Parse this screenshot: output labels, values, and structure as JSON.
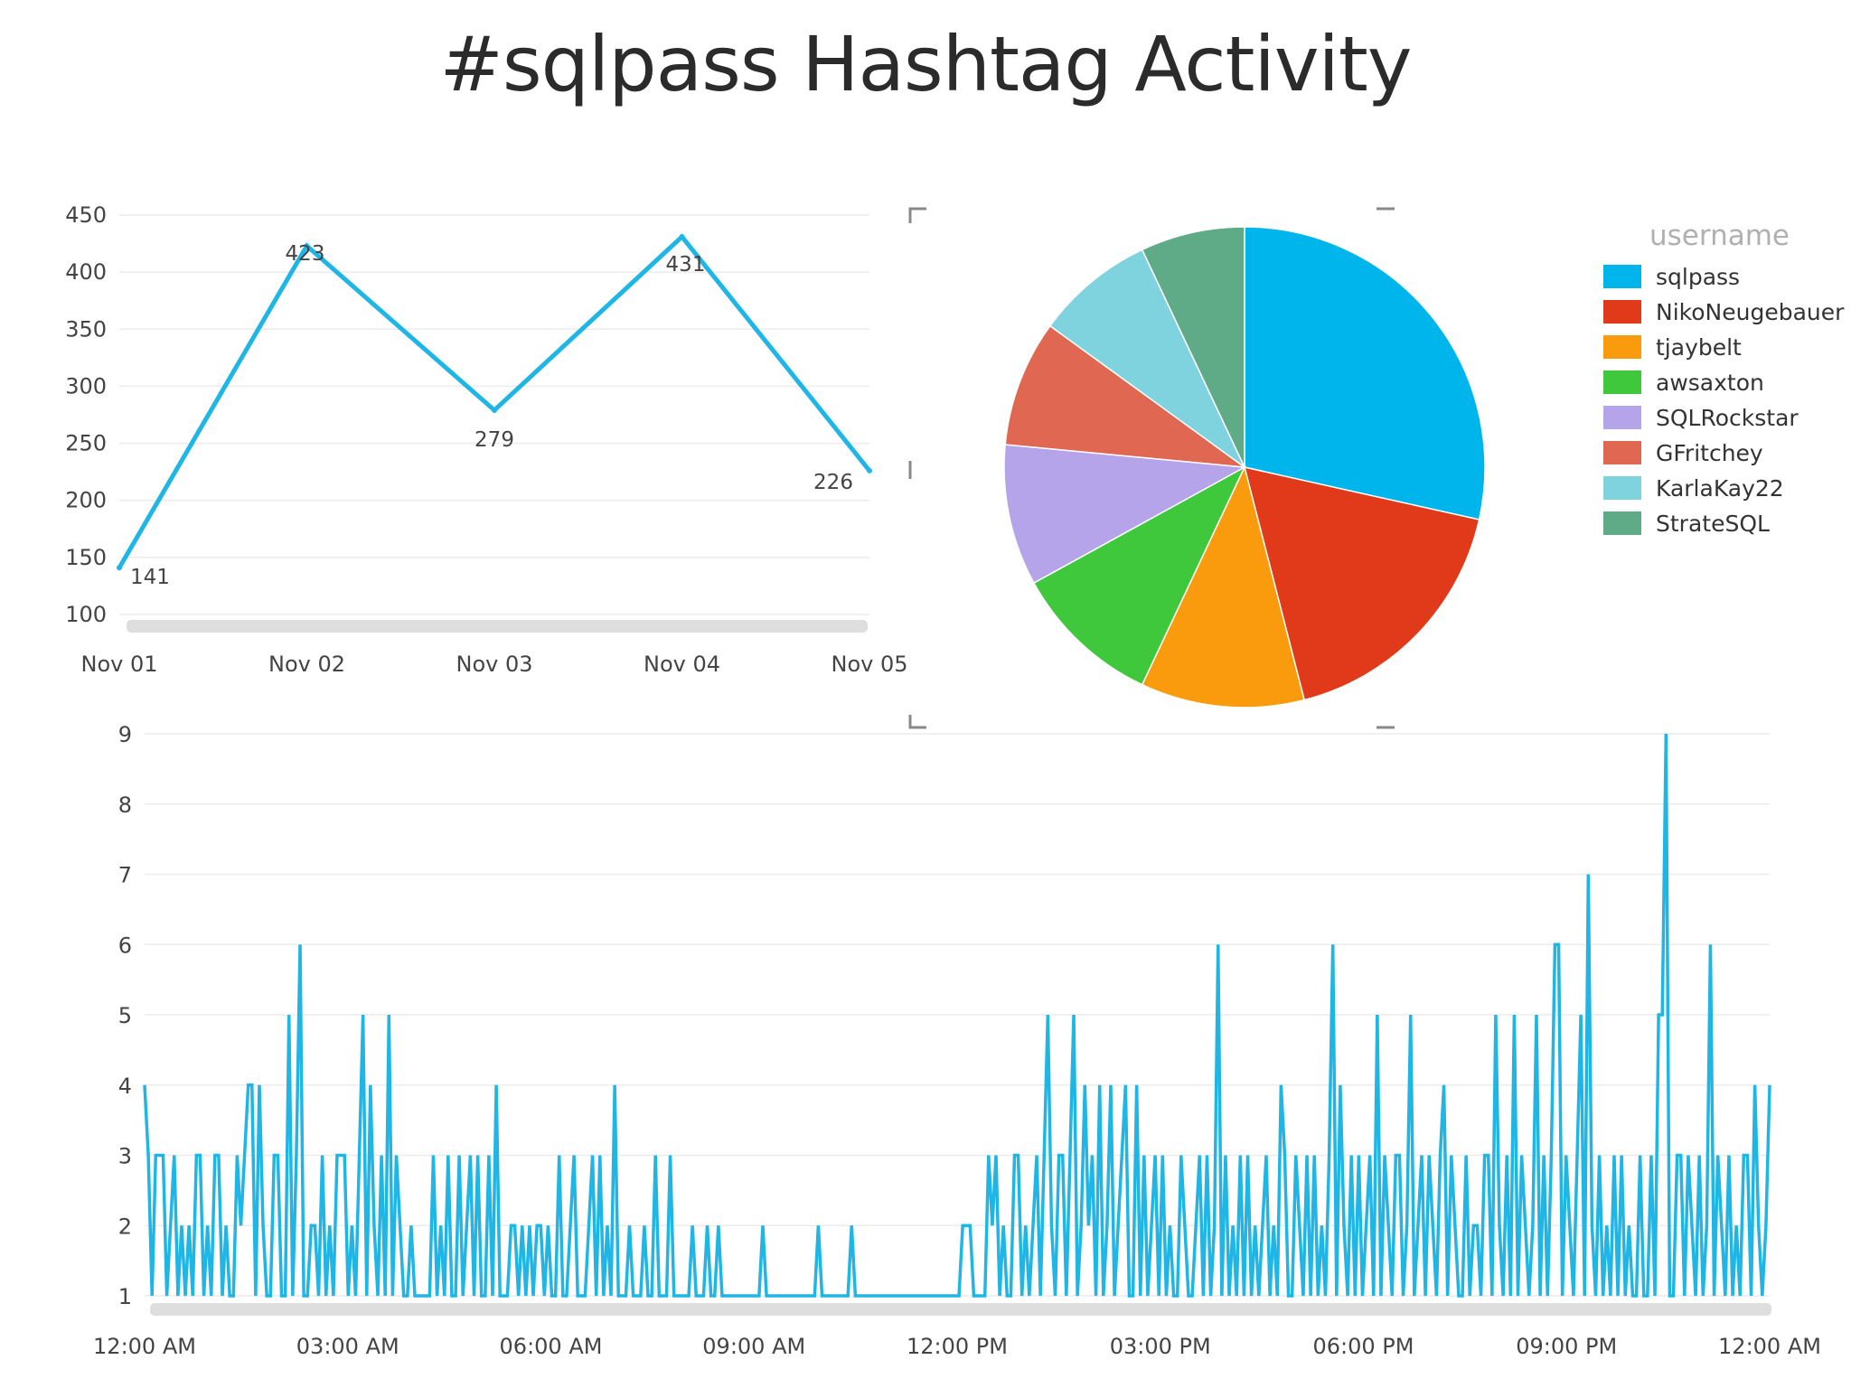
{
  "title": "#sqlpass Hashtag Activity",
  "chart_data": [
    {
      "type": "line",
      "categories": [
        "Nov 01",
        "Nov 02",
        "Nov 03",
        "Nov 04",
        "Nov 05"
      ],
      "series": [
        {
          "values": [
            141,
            423,
            279,
            431,
            226
          ]
        }
      ],
      "data_labels": [
        "141",
        "423",
        "279",
        "431",
        "226"
      ],
      "yticks": [
        100,
        150,
        200,
        250,
        300,
        350,
        400,
        450
      ],
      "ylim": [
        100,
        450
      ],
      "grid": true,
      "color": "#1fb6e6"
    },
    {
      "type": "pie",
      "legend_title": "username",
      "legend_position": "right",
      "labels": [
        "sqlpass",
        "NikoNeugebauer",
        "tjaybelt",
        "awsaxton",
        "SQLRockstar",
        "GFritchey",
        "KarlaKay22",
        "StrateSQL"
      ],
      "values": [
        28.5,
        17.5,
        11.0,
        10.0,
        9.5,
        8.5,
        8.0,
        7.0
      ],
      "colors": [
        "#00b4ec",
        "#e03a1a",
        "#f99b0c",
        "#3fc83b",
        "#b6a4ea",
        "#e06752",
        "#7fd3de",
        "#5faa87"
      ]
    },
    {
      "type": "line",
      "x_tick_labels": [
        "12:00 AM",
        "03:00 AM",
        "06:00 AM",
        "09:00 AM",
        "12:00 PM",
        "03:00 PM",
        "06:00 PM",
        "09:00 PM",
        "12:00 AM"
      ],
      "yticks": [
        1,
        2,
        3,
        4,
        5,
        6,
        7,
        8,
        9
      ],
      "ylim": [
        1,
        9
      ],
      "grid": true,
      "color": "#1fb6e6",
      "series": [
        {
          "values": [
            4,
            3,
            1,
            3,
            3,
            3,
            1,
            2,
            3,
            1,
            2,
            1,
            2,
            1,
            3,
            3,
            1,
            2,
            1,
            3,
            3,
            1,
            2,
            1,
            1,
            3,
            2,
            3,
            4,
            4,
            1,
            4,
            2,
            1,
            1,
            3,
            3,
            1,
            1,
            5,
            1,
            3,
            6,
            1,
            1,
            2,
            2,
            1,
            3,
            1,
            2,
            1,
            3,
            3,
            3,
            1,
            2,
            1,
            3,
            5,
            1,
            4,
            2,
            1,
            3,
            1,
            5,
            1,
            3,
            2,
            1,
            1,
            2,
            1,
            1,
            1,
            1,
            1,
            3,
            1,
            2,
            1,
            3,
            1,
            1,
            3,
            1,
            2,
            3,
            1,
            3,
            1,
            1,
            3,
            1,
            4,
            1,
            1,
            1,
            2,
            2,
            1,
            2,
            1,
            2,
            1,
            2,
            2,
            1,
            2,
            1,
            1,
            3,
            1,
            1,
            2,
            3,
            1,
            1,
            1,
            2,
            3,
            1,
            3,
            1,
            2,
            1,
            4,
            1,
            1,
            1,
            2,
            1,
            1,
            1,
            2,
            1,
            1,
            3,
            1,
            1,
            1,
            3,
            1,
            1,
            1,
            1,
            1,
            2,
            1,
            1,
            1,
            2,
            1,
            1,
            2,
            1,
            1,
            1,
            1,
            1,
            1,
            1,
            1,
            1,
            1,
            1,
            2,
            1,
            1,
            1,
            1,
            1,
            1,
            1,
            1,
            1,
            1,
            1,
            1,
            1,
            1,
            2,
            1,
            1,
            1,
            1,
            1,
            1,
            1,
            1,
            2,
            1,
            1,
            1,
            1,
            1,
            1,
            1,
            1,
            1,
            1,
            1,
            1,
            1,
            1,
            1,
            1,
            1,
            1,
            1,
            1,
            1,
            1,
            1,
            1,
            1,
            1,
            1,
            1,
            1,
            2,
            2,
            2,
            1,
            1,
            1,
            1,
            3,
            2,
            3,
            1,
            2,
            1,
            1,
            3,
            3,
            1,
            2,
            1,
            2,
            3,
            1,
            3,
            5,
            2,
            1,
            3,
            3,
            1,
            3,
            5,
            1,
            2,
            4,
            2,
            3,
            1,
            4,
            1,
            2,
            4,
            1,
            2,
            3,
            4,
            1,
            1,
            4,
            1,
            3,
            1,
            2,
            3,
            1,
            3,
            1,
            2,
            1,
            1,
            3,
            2,
            1,
            1,
            2,
            3,
            1,
            3,
            1,
            2,
            6,
            1,
            3,
            1,
            2,
            1,
            3,
            1,
            3,
            1,
            2,
            1,
            2,
            3,
            1,
            2,
            1,
            4,
            3,
            1,
            1,
            3,
            2,
            1,
            3,
            1,
            3,
            1,
            2,
            1,
            3,
            6,
            1,
            4,
            2,
            1,
            3,
            1,
            3,
            1,
            2,
            3,
            1,
            5,
            1,
            3,
            2,
            1,
            3,
            3,
            1,
            2,
            5,
            1,
            2,
            3,
            1,
            3,
            2,
            1,
            3,
            4,
            1,
            3,
            2,
            1,
            1,
            3,
            1,
            2,
            2,
            1,
            3,
            3,
            1,
            5,
            2,
            1,
            3,
            1,
            5,
            1,
            3,
            2,
            1,
            2,
            5,
            1,
            3,
            1,
            3,
            6,
            6,
            1,
            3,
            2,
            1,
            3,
            5,
            1,
            7,
            2,
            1,
            3,
            1,
            2,
            1,
            3,
            1,
            3,
            1,
            2,
            1,
            1,
            3,
            1,
            1,
            3,
            1,
            5,
            5,
            9,
            1,
            1,
            3,
            3,
            1,
            3,
            2,
            1,
            3,
            1,
            2,
            6,
            1,
            3,
            2,
            1,
            3,
            1,
            2,
            1,
            3,
            3,
            1,
            4,
            2,
            1,
            2,
            4
          ]
        }
      ]
    }
  ]
}
